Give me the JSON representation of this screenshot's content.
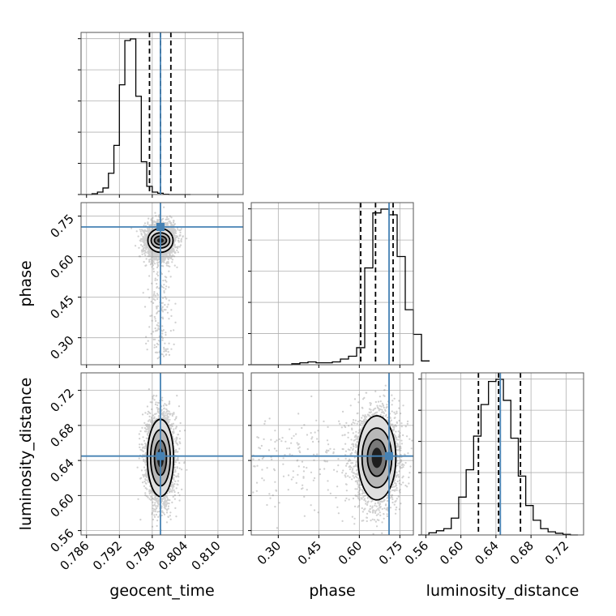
{
  "chart_data": {
    "type": "corner",
    "parameters": [
      {
        "name": "geocent_time",
        "label": "geocent_time",
        "range": [
          0.785,
          0.8146
        ],
        "ticks": [
          0.786,
          0.792,
          0.798,
          0.804,
          0.81
        ],
        "tick_labels": [
          "0.786",
          "0.792",
          "0.798",
          "0.804",
          "0.810"
        ],
        "truth": 0.7995,
        "quantiles": [
          0.7975,
          0.7995,
          0.8014
        ],
        "hist": {
          "edges_start": 0.785,
          "bin_width": 0.001,
          "counts": [
            0,
            0,
            0.5,
            1.5,
            4,
            13,
            30,
            67,
            94,
            95,
            60,
            20,
            5,
            1.5,
            0.8,
            0.2,
            0,
            0,
            0,
            0
          ]
        }
      },
      {
        "name": "phase",
        "label": "phase",
        "range": [
          0.2,
          0.8
        ],
        "ticks": [
          0.3,
          0.45,
          0.6,
          0.75
        ],
        "tick_labels": [
          "0.30",
          "0.45",
          "0.60",
          "0.75"
        ],
        "truth": 0.71,
        "quantiles": [
          0.605,
          0.66,
          0.725
        ],
        "hist": {
          "edges_start": 0.2,
          "bin_width": 0.03,
          "counts": [
            0,
            0,
            0,
            0,
            0,
            0.5,
            1,
            1.5,
            1,
            1,
            1.5,
            3,
            4.5,
            9,
            51,
            80,
            82,
            79,
            57,
            29,
            16,
            2
          ]
        }
      },
      {
        "name": "luminosity_distance",
        "label": "luminosity_distance",
        "range": [
          0.555,
          0.74
        ],
        "ticks": [
          0.56,
          0.6,
          0.64,
          0.68,
          0.72
        ],
        "tick_labels": [
          "0.56",
          "0.60",
          "0.64",
          "0.68",
          "0.72"
        ],
        "truth": 0.645,
        "quantiles": [
          0.62,
          0.643,
          0.668
        ],
        "hist": {
          "edges_start": 0.555,
          "bin_width": 0.0085,
          "counts": [
            0,
            1,
            2,
            3,
            8,
            18,
            31,
            47,
            62,
            73,
            74,
            64,
            46,
            28,
            14,
            7,
            3,
            1.5,
            0.8,
            0.3,
            0
          ]
        }
      }
    ],
    "pairs": [
      {
        "x": "geocent_time",
        "y": "phase",
        "contour_levels": [
          [
            0.0023,
            0.044
          ],
          [
            0.0017,
            0.028
          ],
          [
            0.0011,
            0.016
          ]
        ],
        "peak": [
          0.7995,
          0.66
        ]
      },
      {
        "x": "geocent_time",
        "y": "luminosity_distance",
        "contour_levels": [
          [
            0.0024,
            0.044
          ],
          [
            0.0018,
            0.032
          ],
          [
            0.0011,
            0.02
          ]
        ],
        "peak": [
          0.7995,
          0.643
        ]
      },
      {
        "x": "phase",
        "y": "luminosity_distance",
        "contour_levels": [
          [
            0.07,
            0.048
          ],
          [
            0.055,
            0.034
          ],
          [
            0.035,
            0.021
          ]
        ],
        "peak": [
          0.665,
          0.643
        ]
      }
    ],
    "colors": {
      "truth": "#4682b4",
      "hist": "#000000",
      "grid": "#b0b0b0",
      "scatter": "#7a7a7a"
    },
    "grid": true,
    "legend": "none"
  }
}
